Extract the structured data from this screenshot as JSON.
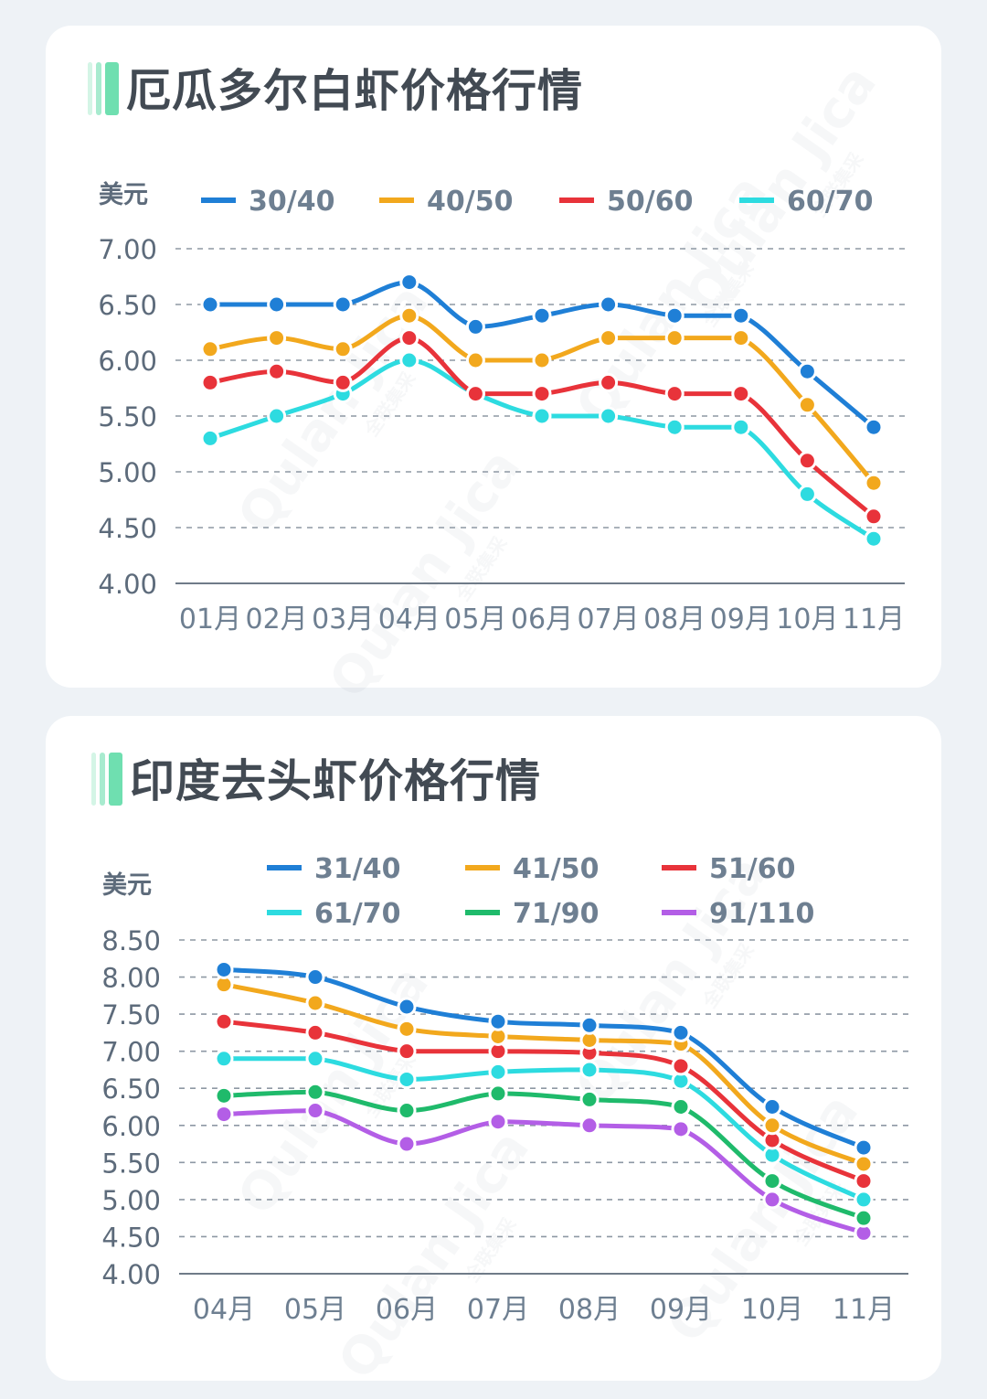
{
  "chart_data": [
    {
      "type": "line",
      "title": "厄瓜多尔白虾价格行情",
      "ylabel": "美元",
      "xlabel": "",
      "categories": [
        "01月",
        "02月",
        "03月",
        "04月",
        "05月",
        "06月",
        "07月",
        "08月",
        "09月",
        "10月",
        "11月"
      ],
      "ylim": [
        4.0,
        7.0
      ],
      "yticks": [
        "7.00",
        "6.50",
        "6.00",
        "5.50",
        "5.00",
        "4.50",
        "4.00"
      ],
      "grid": true,
      "legend_position": "top",
      "series": [
        {
          "name": "30/40",
          "color": "#1f7fd6",
          "values": [
            6.5,
            6.5,
            6.5,
            6.7,
            6.3,
            6.4,
            6.5,
            6.4,
            6.4,
            5.9,
            5.4
          ]
        },
        {
          "name": "40/50",
          "color": "#f2a81d",
          "values": [
            6.1,
            6.2,
            6.1,
            6.4,
            6.0,
            6.0,
            6.2,
            6.2,
            6.2,
            5.6,
            4.9
          ]
        },
        {
          "name": "50/60",
          "color": "#e8333a",
          "values": [
            5.8,
            5.9,
            5.8,
            6.2,
            5.7,
            5.7,
            5.8,
            5.7,
            5.7,
            5.1,
            4.6
          ]
        },
        {
          "name": "60/70",
          "color": "#2ddbe0",
          "values": [
            5.3,
            5.5,
            5.7,
            6.0,
            5.7,
            5.5,
            5.5,
            5.4,
            5.4,
            4.8,
            4.4
          ]
        }
      ]
    },
    {
      "type": "line",
      "title": "印度去头虾价格行情",
      "ylabel": "美元",
      "xlabel": "",
      "categories": [
        "04月",
        "05月",
        "06月",
        "07月",
        "08月",
        "09月",
        "10月",
        "11月"
      ],
      "ylim": [
        4.0,
        8.5
      ],
      "yticks": [
        "8.50",
        "8.00",
        "7.50",
        "7.00",
        "6.50",
        "6.00",
        "5.50",
        "5.00",
        "4.50",
        "4.00"
      ],
      "grid": true,
      "legend_position": "top",
      "series": [
        {
          "name": "31/40",
          "color": "#1f7fd6",
          "values": [
            8.1,
            8.0,
            7.6,
            7.4,
            7.35,
            7.25,
            6.25,
            5.7
          ]
        },
        {
          "name": "41/50",
          "color": "#f2a81d",
          "values": [
            7.9,
            7.65,
            7.3,
            7.2,
            7.15,
            7.1,
            6.0,
            5.48
          ]
        },
        {
          "name": "51/60",
          "color": "#e8333a",
          "values": [
            7.4,
            7.25,
            7.0,
            7.0,
            6.98,
            6.8,
            5.8,
            5.25
          ]
        },
        {
          "name": "61/70",
          "color": "#2ddbe0",
          "values": [
            6.9,
            6.9,
            6.62,
            6.72,
            6.75,
            6.6,
            5.6,
            5.0
          ]
        },
        {
          "name": "71/90",
          "color": "#1fba6b",
          "values": [
            6.4,
            6.45,
            6.2,
            6.43,
            6.35,
            6.25,
            5.25,
            4.75
          ]
        },
        {
          "name": "91/110",
          "color": "#b35ee6",
          "values": [
            6.15,
            6.2,
            5.75,
            6.05,
            6.0,
            5.95,
            5.0,
            4.55
          ]
        }
      ]
    }
  ],
  "watermark": {
    "text": "Qulan Jica",
    "subtext": "全联集采"
  }
}
